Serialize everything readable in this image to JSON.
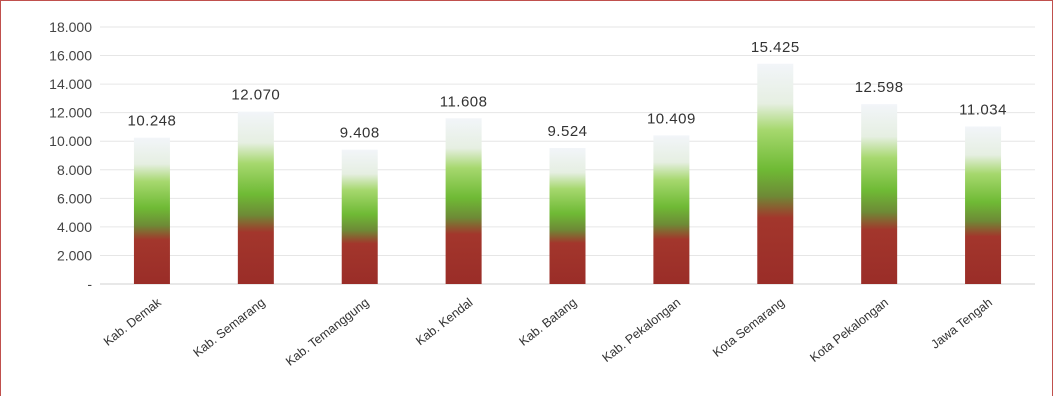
{
  "chart_data": {
    "type": "bar",
    "categories": [
      "Kab. Demak",
      "Kab. Semarang",
      "Kab. Temanggung",
      "Kab. Kendal",
      "Kab. Batang",
      "Kab. Pekalongan",
      "Kota Semarang",
      "Kota Pekalongan",
      "Jawa Tengah"
    ],
    "values": [
      10248,
      12070,
      9408,
      11608,
      9524,
      10409,
      15425,
      12598,
      11034
    ],
    "data_labels": [
      "10.248",
      "12.070",
      "9.408",
      "11.608",
      "9.524",
      "10.409",
      "15.425",
      "12.598",
      "11.034"
    ],
    "y_ticks": [
      "-",
      "2.000",
      "4.000",
      "6.000",
      "8.000",
      "10.000",
      "12.000",
      "14.000",
      "16.000",
      "18.000"
    ],
    "ylim": [
      0,
      18000
    ],
    "grid": true,
    "colors": {
      "bottom": "#a0302b",
      "middle": "#7fc241",
      "top": "#f2f5f9",
      "frame": "#c0504d"
    }
  }
}
